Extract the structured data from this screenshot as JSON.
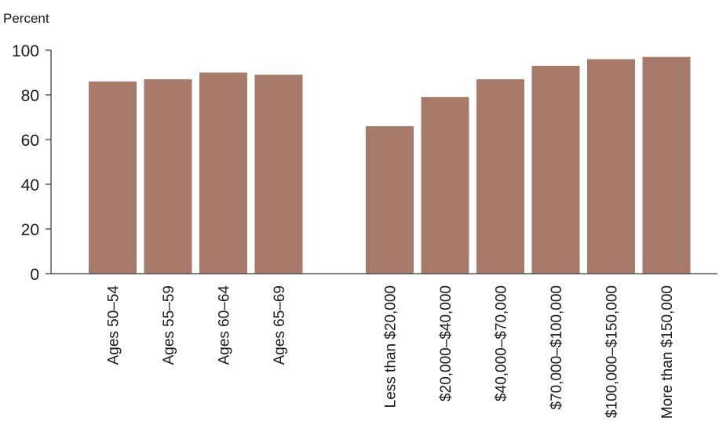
{
  "chart_data": {
    "type": "bar",
    "ylabel": "Percent",
    "ylim": [
      0,
      100
    ],
    "yticks": [
      "0",
      "20",
      "40",
      "60",
      "80",
      "100"
    ],
    "bar_color": "#a87a6b",
    "groups": [
      {
        "categories": [
          "Ages 50–54",
          "Ages 55–59",
          "Ages 60–64",
          "Ages 65–69"
        ],
        "values": [
          86,
          87,
          90,
          89
        ]
      },
      {
        "categories": [
          "Less than $20,000",
          "$20,000–$40,000",
          "$40,000–$70,000",
          "$70,000–$100,000",
          "$100,000–$150,000",
          "More than $150,000"
        ],
        "values": [
          66,
          79,
          87,
          93,
          96,
          97
        ]
      }
    ],
    "grid": false,
    "legend": "none"
  }
}
